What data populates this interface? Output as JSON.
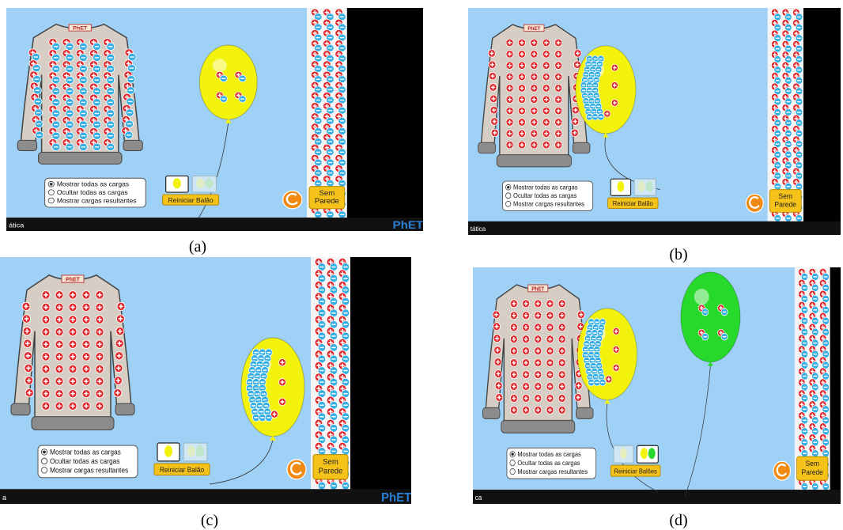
{
  "panels": [
    {
      "caption": "(a)",
      "sweater_logo": "PhET",
      "options": [
        "Mostrar todas as cargas",
        "Ocultar todas as cargas",
        "Mostrar cargas resultantes"
      ],
      "reset_button": "Reiniciar Balão",
      "wall_button": [
        "Sem",
        "Parede"
      ],
      "footer": "ática",
      "footer_logo": "PhET"
    },
    {
      "caption": "(b)",
      "sweater_logo": "PhET",
      "options": [
        "Mostrar todas as cargas",
        "Ocultar todas as cargas",
        "Mostrar cargas resultantes"
      ],
      "reset_button": "Reiniciar Balão",
      "wall_button": [
        "Sem",
        "Parede"
      ],
      "footer": "tática"
    },
    {
      "caption": "(c)",
      "sweater_logo": "PhET",
      "options": [
        "Mostrar todas as cargas",
        "Ocultar todas as cargas",
        "Mostrar cargas resultantes"
      ],
      "reset_button": "Reiniciar Balão",
      "wall_button": [
        "Sem",
        "Parede"
      ],
      "footer": "a",
      "footer_logo": "PhET"
    },
    {
      "caption": "(d)",
      "sweater_logo": "PhET",
      "options": [
        "Mostrar todas as cargas",
        "Ocultar todas as cargas",
        "Mostrar cargas resultantes"
      ],
      "reset_button": "Reiniciar Balões",
      "wall_button": [
        "Sem",
        "Parede"
      ],
      "footer": "ca"
    }
  ]
}
